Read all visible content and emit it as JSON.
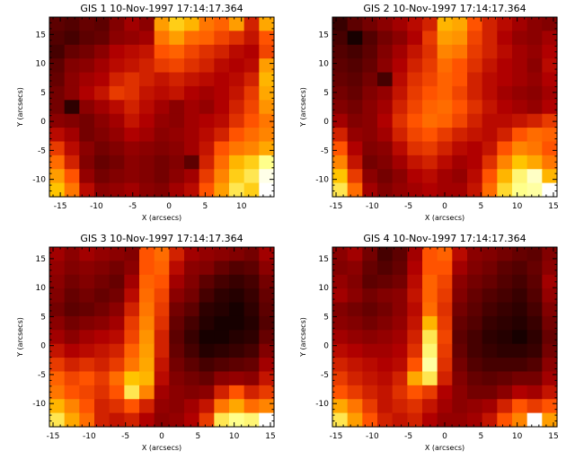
{
  "panels": [
    {
      "title": "GIS 1 10-Nov-1997 17:14:17.364",
      "xlabel": "X (arcsecs)",
      "ylabel": "Y (arcsecs)",
      "xticks": [
        "-15",
        "-10",
        "-5",
        "0",
        "5",
        "10"
      ],
      "yticks": [
        "-10",
        "-5",
        "0",
        "5",
        "10",
        "15"
      ],
      "xlim": [
        -16.5,
        14.5
      ],
      "ylim": [
        -13,
        18
      ],
      "grid": [
        [
          0.2,
          0.18,
          0.22,
          0.2,
          0.28,
          0.35,
          0.3,
          0.7,
          0.8,
          0.75,
          0.62,
          0.58,
          0.7,
          0.45,
          0.72
        ],
        [
          0.18,
          0.15,
          0.2,
          0.22,
          0.3,
          0.32,
          0.35,
          0.62,
          0.7,
          0.6,
          0.58,
          0.52,
          0.48,
          0.42,
          0.55
        ],
        [
          0.15,
          0.22,
          0.25,
          0.3,
          0.38,
          0.4,
          0.42,
          0.55,
          0.58,
          0.52,
          0.48,
          0.45,
          0.4,
          0.38,
          0.52
        ],
        [
          0.2,
          0.28,
          0.3,
          0.35,
          0.4,
          0.42,
          0.45,
          0.5,
          0.52,
          0.48,
          0.45,
          0.4,
          0.38,
          0.4,
          0.7
        ],
        [
          0.22,
          0.3,
          0.35,
          0.38,
          0.45,
          0.48,
          0.45,
          0.42,
          0.45,
          0.42,
          0.4,
          0.38,
          0.4,
          0.45,
          0.75
        ],
        [
          0.25,
          0.3,
          0.38,
          0.42,
          0.5,
          0.48,
          0.42,
          0.4,
          0.42,
          0.38,
          0.35,
          0.38,
          0.42,
          0.5,
          0.72
        ],
        [
          0.25,
          0.1,
          0.3,
          0.35,
          0.4,
          0.45,
          0.4,
          0.35,
          0.3,
          0.35,
          0.32,
          0.38,
          0.45,
          0.52,
          0.68
        ],
        [
          0.3,
          0.28,
          0.25,
          0.3,
          0.35,
          0.42,
          0.38,
          0.32,
          0.3,
          0.35,
          0.38,
          0.4,
          0.48,
          0.55,
          0.62
        ],
        [
          0.4,
          0.35,
          0.25,
          0.28,
          0.32,
          0.38,
          0.35,
          0.3,
          0.32,
          0.35,
          0.4,
          0.45,
          0.55,
          0.6,
          0.65
        ],
        [
          0.5,
          0.4,
          0.3,
          0.25,
          0.28,
          0.32,
          0.3,
          0.28,
          0.3,
          0.35,
          0.42,
          0.55,
          0.62,
          0.65,
          0.72
        ],
        [
          0.6,
          0.45,
          0.28,
          0.22,
          0.25,
          0.3,
          0.28,
          0.25,
          0.28,
          0.2,
          0.45,
          0.6,
          0.75,
          0.8,
          0.9
        ],
        [
          0.7,
          0.55,
          0.32,
          0.25,
          0.28,
          0.3,
          0.28,
          0.25,
          0.3,
          0.35,
          0.5,
          0.65,
          0.8,
          0.85,
          0.98
        ],
        [
          0.78,
          0.62,
          0.4,
          0.3,
          0.32,
          0.35,
          0.3,
          0.28,
          0.35,
          0.4,
          0.55,
          0.7,
          0.85,
          0.8,
          1.0
        ]
      ]
    },
    {
      "title": "GIS 2 10-Nov-1997 17:14:17.364",
      "xlabel": "X (arcsecs)",
      "ylabel": "Y (arcsecs)",
      "xticks": [
        "-15",
        "-10",
        "-5",
        "0",
        "5",
        "10",
        "15"
      ],
      "yticks": [
        "-10",
        "-5",
        "0",
        "5",
        "10",
        "15"
      ],
      "xlim": [
        -15.5,
        15.5
      ],
      "ylim": [
        -13,
        18
      ],
      "grid": [
        [
          0.12,
          0.2,
          0.25,
          0.3,
          0.35,
          0.4,
          0.45,
          0.75,
          0.72,
          0.55,
          0.45,
          0.4,
          0.35,
          0.3,
          0.28
        ],
        [
          0.15,
          0.05,
          0.18,
          0.25,
          0.3,
          0.38,
          0.5,
          0.7,
          0.68,
          0.52,
          0.45,
          0.38,
          0.32,
          0.3,
          0.35
        ],
        [
          0.18,
          0.15,
          0.2,
          0.28,
          0.35,
          0.42,
          0.48,
          0.65,
          0.62,
          0.5,
          0.45,
          0.4,
          0.35,
          0.32,
          0.38
        ],
        [
          0.2,
          0.18,
          0.22,
          0.3,
          0.38,
          0.45,
          0.5,
          0.6,
          0.55,
          0.48,
          0.42,
          0.38,
          0.35,
          0.3,
          0.4
        ],
        [
          0.22,
          0.2,
          0.25,
          0.15,
          0.4,
          0.48,
          0.52,
          0.58,
          0.55,
          0.45,
          0.4,
          0.38,
          0.35,
          0.32,
          0.38
        ],
        [
          0.25,
          0.22,
          0.28,
          0.32,
          0.42,
          0.5,
          0.55,
          0.58,
          0.52,
          0.45,
          0.4,
          0.35,
          0.32,
          0.3,
          0.35
        ],
        [
          0.28,
          0.25,
          0.3,
          0.35,
          0.45,
          0.52,
          0.58,
          0.6,
          0.55,
          0.48,
          0.42,
          0.38,
          0.35,
          0.32,
          0.38
        ],
        [
          0.35,
          0.28,
          0.3,
          0.38,
          0.48,
          0.55,
          0.6,
          0.58,
          0.52,
          0.45,
          0.4,
          0.4,
          0.42,
          0.45,
          0.5
        ],
        [
          0.45,
          0.32,
          0.3,
          0.35,
          0.45,
          0.52,
          0.55,
          0.5,
          0.45,
          0.42,
          0.4,
          0.45,
          0.55,
          0.6,
          0.58
        ],
        [
          0.55,
          0.38,
          0.28,
          0.3,
          0.4,
          0.48,
          0.5,
          0.45,
          0.4,
          0.38,
          0.42,
          0.55,
          0.65,
          0.62,
          0.55
        ],
        [
          0.65,
          0.42,
          0.25,
          0.28,
          0.35,
          0.42,
          0.45,
          0.4,
          0.35,
          0.38,
          0.48,
          0.65,
          0.78,
          0.72,
          0.62
        ],
        [
          0.78,
          0.5,
          0.3,
          0.25,
          0.3,
          0.38,
          0.4,
          0.35,
          0.32,
          0.4,
          0.55,
          0.75,
          0.88,
          0.95,
          0.75
        ],
        [
          0.85,
          0.6,
          0.35,
          0.28,
          0.32,
          0.35,
          0.38,
          0.35,
          0.35,
          0.42,
          0.6,
          0.82,
          0.9,
          0.92,
          1.0
        ]
      ]
    },
    {
      "title": "GIS 3 10-Nov-1997 17:14:17.364",
      "xlabel": "X (arcsecs)",
      "ylabel": "Y (arcsecs)",
      "xticks": [
        "-15",
        "-10",
        "-5",
        "0",
        "5",
        "10",
        "15"
      ],
      "yticks": [
        "-10",
        "-5",
        "0",
        "5",
        "10",
        "15"
      ],
      "xlim": [
        -15.5,
        15.5
      ],
      "ylim": [
        -14,
        17
      ],
      "grid": [
        [
          0.35,
          0.3,
          0.35,
          0.32,
          0.3,
          0.28,
          0.55,
          0.6,
          0.45,
          0.35,
          0.32,
          0.3,
          0.28,
          0.25,
          0.35
        ],
        [
          0.32,
          0.28,
          0.3,
          0.28,
          0.25,
          0.3,
          0.55,
          0.58,
          0.4,
          0.3,
          0.28,
          0.22,
          0.18,
          0.2,
          0.3
        ],
        [
          0.3,
          0.25,
          0.28,
          0.25,
          0.22,
          0.35,
          0.58,
          0.55,
          0.35,
          0.28,
          0.2,
          0.15,
          0.12,
          0.15,
          0.25
        ],
        [
          0.28,
          0.22,
          0.25,
          0.22,
          0.25,
          0.4,
          0.6,
          0.52,
          0.3,
          0.25,
          0.15,
          0.1,
          0.08,
          0.12,
          0.22
        ],
        [
          0.25,
          0.2,
          0.22,
          0.25,
          0.3,
          0.45,
          0.62,
          0.5,
          0.25,
          0.2,
          0.1,
          0.08,
          0.05,
          0.1,
          0.2
        ],
        [
          0.3,
          0.25,
          0.28,
          0.3,
          0.35,
          0.5,
          0.65,
          0.48,
          0.22,
          0.15,
          0.08,
          0.05,
          0.05,
          0.08,
          0.18
        ],
        [
          0.35,
          0.3,
          0.35,
          0.38,
          0.4,
          0.52,
          0.68,
          0.45,
          0.2,
          0.12,
          0.05,
          0.05,
          0.08,
          0.1,
          0.22
        ],
        [
          0.42,
          0.38,
          0.4,
          0.42,
          0.45,
          0.58,
          0.7,
          0.45,
          0.22,
          0.15,
          0.08,
          0.1,
          0.12,
          0.15,
          0.28
        ],
        [
          0.5,
          0.45,
          0.48,
          0.45,
          0.5,
          0.62,
          0.72,
          0.42,
          0.25,
          0.2,
          0.15,
          0.18,
          0.2,
          0.22,
          0.35
        ],
        [
          0.58,
          0.52,
          0.55,
          0.5,
          0.6,
          0.78,
          0.75,
          0.4,
          0.28,
          0.25,
          0.22,
          0.3,
          0.32,
          0.3,
          0.42
        ],
        [
          0.62,
          0.55,
          0.52,
          0.48,
          0.55,
          0.85,
          0.65,
          0.35,
          0.3,
          0.28,
          0.3,
          0.45,
          0.55,
          0.45,
          0.5
        ],
        [
          0.75,
          0.65,
          0.55,
          0.45,
          0.48,
          0.55,
          0.45,
          0.32,
          0.3,
          0.35,
          0.42,
          0.62,
          0.72,
          0.6,
          0.65
        ],
        [
          0.85,
          0.72,
          0.6,
          0.45,
          0.42,
          0.45,
          0.38,
          0.3,
          0.32,
          0.38,
          0.5,
          0.85,
          0.9,
          0.88,
          1.0
        ]
      ]
    },
    {
      "title": "GIS 4 10-Nov-1997 17:14:17.364",
      "xlabel": "X (arcsecs)",
      "ylabel": "Y (arcsecs)",
      "xticks": [
        "-15",
        "-10",
        "-5",
        "0",
        "5",
        "10",
        "15"
      ],
      "yticks": [
        "-10",
        "-5",
        "0",
        "5",
        "10",
        "15"
      ],
      "xlim": [
        -15.5,
        15.5
      ],
      "ylim": [
        -14,
        17
      ],
      "grid": [
        [
          0.3,
          0.35,
          0.25,
          0.15,
          0.2,
          0.35,
          0.55,
          0.58,
          0.4,
          0.3,
          0.28,
          0.25,
          0.22,
          0.2,
          0.28
        ],
        [
          0.28,
          0.3,
          0.22,
          0.18,
          0.22,
          0.38,
          0.55,
          0.55,
          0.35,
          0.28,
          0.25,
          0.2,
          0.18,
          0.22,
          0.3
        ],
        [
          0.32,
          0.28,
          0.2,
          0.22,
          0.25,
          0.4,
          0.58,
          0.52,
          0.3,
          0.25,
          0.22,
          0.18,
          0.15,
          0.2,
          0.35
        ],
        [
          0.35,
          0.3,
          0.25,
          0.28,
          0.3,
          0.42,
          0.58,
          0.5,
          0.28,
          0.22,
          0.18,
          0.15,
          0.12,
          0.18,
          0.32
        ],
        [
          0.28,
          0.25,
          0.22,
          0.25,
          0.3,
          0.4,
          0.6,
          0.48,
          0.25,
          0.2,
          0.15,
          0.12,
          0.1,
          0.15,
          0.28
        ],
        [
          0.3,
          0.28,
          0.25,
          0.28,
          0.32,
          0.42,
          0.75,
          0.5,
          0.22,
          0.18,
          0.12,
          0.1,
          0.08,
          0.12,
          0.25
        ],
        [
          0.35,
          0.32,
          0.3,
          0.32,
          0.35,
          0.45,
          0.85,
          0.52,
          0.2,
          0.15,
          0.1,
          0.08,
          0.05,
          0.1,
          0.22
        ],
        [
          0.4,
          0.38,
          0.35,
          0.35,
          0.38,
          0.48,
          0.88,
          0.5,
          0.22,
          0.15,
          0.12,
          0.1,
          0.1,
          0.12,
          0.25
        ],
        [
          0.45,
          0.42,
          0.4,
          0.38,
          0.4,
          0.55,
          0.92,
          0.48,
          0.25,
          0.18,
          0.15,
          0.15,
          0.15,
          0.18,
          0.3
        ],
        [
          0.5,
          0.45,
          0.42,
          0.4,
          0.45,
          0.72,
          0.85,
          0.45,
          0.28,
          0.22,
          0.2,
          0.22,
          0.25,
          0.25,
          0.35
        ],
        [
          0.55,
          0.5,
          0.45,
          0.42,
          0.48,
          0.55,
          0.5,
          0.38,
          0.3,
          0.25,
          0.25,
          0.3,
          0.38,
          0.35,
          0.42
        ],
        [
          0.72,
          0.62,
          0.5,
          0.42,
          0.45,
          0.48,
          0.42,
          0.35,
          0.3,
          0.32,
          0.35,
          0.45,
          0.55,
          0.5,
          0.55
        ],
        [
          0.85,
          0.7,
          0.55,
          0.45,
          0.42,
          0.45,
          0.38,
          0.32,
          0.32,
          0.35,
          0.42,
          0.55,
          0.65,
          1.0,
          0.7
        ]
      ]
    }
  ]
}
